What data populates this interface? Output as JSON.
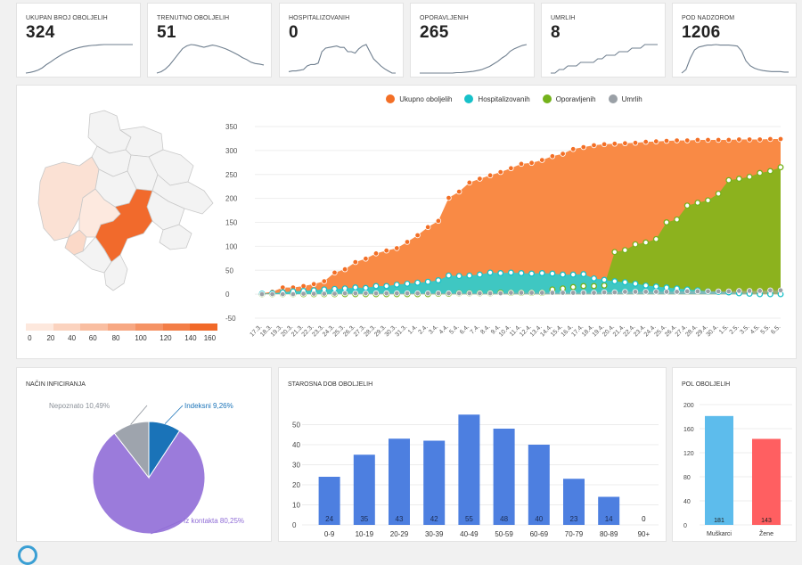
{
  "kpis": [
    {
      "key": "total",
      "title": "UKUPAN BROJ OBOLJELIH",
      "value": "324",
      "series": [
        4,
        8,
        15,
        25,
        40,
        62,
        80,
        100,
        118,
        135,
        150,
        162,
        172,
        180,
        186,
        190,
        194,
        196,
        198,
        200,
        200,
        200,
        200,
        200,
        200,
        200,
        200
      ]
    },
    {
      "key": "current",
      "title": "TRENUTNO OBOLJELIH",
      "value": "51",
      "series": [
        5,
        10,
        20,
        35,
        55,
        75,
        95,
        105,
        110,
        108,
        104,
        100,
        104,
        108,
        105,
        100,
        95,
        88,
        80,
        72,
        62,
        55,
        45,
        40,
        38,
        35
      ]
    },
    {
      "key": "hosp",
      "title": "HOSPITALIZOVANIH",
      "value": "0",
      "series": [
        2,
        3,
        3,
        4,
        5,
        10,
        12,
        12,
        14,
        30,
        35,
        36,
        37,
        38,
        36,
        36,
        30,
        30,
        28,
        34,
        38,
        40,
        30,
        20,
        15,
        10,
        6,
        3,
        0,
        0
      ]
    },
    {
      "key": "recovered",
      "title": "OPORAVLJENIH",
      "value": "265",
      "series": [
        0,
        0,
        0,
        0,
        0,
        0,
        0,
        0,
        0,
        1,
        1,
        2,
        3,
        4,
        6,
        8,
        12,
        16,
        22,
        28,
        36,
        42,
        52,
        58,
        62,
        66,
        68
      ]
    },
    {
      "key": "deaths",
      "title": "UMRLIH",
      "value": "8",
      "series": [
        0,
        0,
        1,
        1,
        2,
        2,
        2,
        3,
        3,
        3,
        3,
        4,
        4,
        5,
        5,
        5,
        6,
        6,
        6,
        7,
        7,
        7,
        8,
        8,
        8,
        8
      ]
    },
    {
      "key": "surveillance",
      "title": "POD NADZOROM",
      "value": "1206",
      "series": [
        5,
        12,
        35,
        52,
        58,
        60,
        62,
        62,
        63,
        62,
        62,
        62,
        61,
        60,
        50,
        30,
        20,
        15,
        12,
        10,
        9,
        8,
        8,
        8,
        7,
        7
      ]
    }
  ],
  "map": {
    "scale_ticks": [
      "0",
      "20",
      "40",
      "60",
      "80",
      "100",
      "120",
      "140",
      "160"
    ],
    "scale_colors": [
      "#fde8dd",
      "#fbd3bf",
      "#f9bea1",
      "#f7a883",
      "#f59365",
      "#f37e47",
      "#f16929"
    ]
  },
  "timeline": {
    "legend": [
      {
        "label": "Ukupno oboljelih",
        "color": "#f36f26"
      },
      {
        "label": "Hospitalizovanih",
        "color": "#17c1c9"
      },
      {
        "label": "Oporavljenih",
        "color": "#74b21b"
      },
      {
        "label": "Umrlih",
        "color": "#9aa0a6"
      }
    ],
    "yticks": [
      "350",
      "300",
      "250",
      "200",
      "150",
      "100",
      "50",
      "0",
      "-50"
    ],
    "dates": [
      "17.3.",
      "18.3.",
      "19.3.",
      "20.3.",
      "21.3.",
      "22.3.",
      "23.3.",
      "24.3.",
      "25.3.",
      "26.3.",
      "27.3.",
      "28.3.",
      "29.3.",
      "30.3.",
      "31.3.",
      "1.4.",
      "2.4.",
      "3.4.",
      "4.4.",
      "5.4.",
      "6.4.",
      "7.4.",
      "8.4.",
      "9.4.",
      "10.4.",
      "11.4.",
      "12.4.",
      "13.4.",
      "14.4.",
      "15.4.",
      "16.4.",
      "17.4.",
      "18.4.",
      "19.4.",
      "20.4.",
      "21.4.",
      "22.4.",
      "23.4.",
      "24.4.",
      "25.4.",
      "26.4.",
      "27.4.",
      "28.4.",
      "29.4.",
      "30.4.",
      "1.5.",
      "2.5.",
      "3.5.",
      "4.5.",
      "5.5.",
      "6.5."
    ]
  },
  "chart_data": [
    {
      "type": "area",
      "ylim": [
        -50,
        350
      ],
      "x": [
        "17.3.",
        "18.3.",
        "19.3.",
        "20.3.",
        "21.3.",
        "22.3.",
        "23.3.",
        "24.3.",
        "25.3.",
        "26.3.",
        "27.3.",
        "28.3.",
        "29.3.",
        "30.3.",
        "31.3.",
        "1.4.",
        "2.4.",
        "3.4.",
        "4.4.",
        "5.4.",
        "6.4.",
        "7.4.",
        "8.4.",
        "9.4.",
        "10.4.",
        "11.4.",
        "12.4.",
        "13.4.",
        "14.4.",
        "15.4.",
        "16.4.",
        "17.4.",
        "18.4.",
        "19.4.",
        "20.4.",
        "21.4.",
        "22.4.",
        "23.4.",
        "24.4.",
        "25.4.",
        "26.4.",
        "27.4.",
        "28.4.",
        "29.4.",
        "30.4.",
        "1.5.",
        "2.5.",
        "3.5.",
        "4.5.",
        "5.5.",
        "6.5."
      ],
      "series": [
        {
          "name": "Ukupno oboljelih",
          "values": [
            2,
            5,
            14,
            14,
            17,
            21,
            27,
            45,
            52,
            67,
            74,
            85,
            91,
            96,
            109,
            123,
            140,
            153,
            201,
            214,
            233,
            241,
            248,
            255,
            263,
            272,
            274,
            280,
            288,
            293,
            303,
            307,
            311,
            313,
            314,
            315,
            316,
            318,
            319,
            320,
            321,
            321,
            322,
            322,
            322,
            322,
            323,
            323,
            323,
            324,
            324
          ]
        },
        {
          "name": "Hospitalizovanih",
          "values": [
            1,
            2,
            4,
            6,
            7,
            8,
            10,
            11,
            12,
            14,
            13,
            17,
            17,
            20,
            22,
            24,
            26,
            29,
            39,
            38,
            39,
            41,
            45,
            44,
            45,
            44,
            43,
            44,
            43,
            41,
            41,
            42,
            33,
            30,
            27,
            25,
            22,
            18,
            16,
            14,
            12,
            10,
            8,
            6,
            5,
            4,
            2,
            1,
            0,
            0,
            0
          ]
        },
        {
          "name": "Oporavljenih",
          "values": [
            0,
            0,
            0,
            0,
            0,
            0,
            0,
            0,
            0,
            0,
            0,
            0,
            0,
            0,
            0,
            0,
            0,
            1,
            1,
            2,
            2,
            2,
            2,
            3,
            3,
            3,
            3,
            3,
            10,
            12,
            15,
            17,
            17,
            18,
            88,
            92,
            104,
            108,
            115,
            150,
            156,
            185,
            191,
            196,
            210,
            238,
            241,
            245,
            253,
            257,
            265
          ]
        },
        {
          "name": "Umrlih",
          "values": [
            0,
            0,
            0,
            0,
            1,
            1,
            1,
            1,
            2,
            2,
            2,
            2,
            2,
            2,
            2,
            2,
            2,
            2,
            2,
            2,
            2,
            2,
            2,
            2,
            3,
            3,
            3,
            3,
            3,
            3,
            3,
            3,
            3,
            4,
            4,
            5,
            5,
            5,
            5,
            5,
            5,
            6,
            6,
            6,
            6,
            6,
            7,
            7,
            7,
            8,
            8
          ]
        }
      ]
    },
    {
      "type": "pie",
      "title": "NAČIN INFICIRANJA",
      "slices": [
        {
          "name": "Indeksni",
          "value": 9.26,
          "label": "Indeksni 9,26%",
          "color": "#1a73b8"
        },
        {
          "name": "Iz kontakta",
          "value": 80.25,
          "label": "Iz kontakta 80,25%",
          "color": "#9b7bdb"
        },
        {
          "name": "Nepoznato",
          "value": 10.49,
          "label": "Nepoznato 10,49%",
          "color": "#9ea4ad"
        }
      ]
    },
    {
      "type": "bar",
      "title": "STAROSNA DOB OBOLJELIH",
      "categories": [
        "0-9",
        "10-19",
        "20-29",
        "30-39",
        "40-49",
        "50-59",
        "60-69",
        "70-79",
        "80-89",
        "90+"
      ],
      "values": [
        24,
        35,
        43,
        42,
        55,
        48,
        40,
        23,
        14,
        0
      ],
      "ylim": [
        0,
        60
      ],
      "yticks": [
        "0",
        "10",
        "20",
        "30",
        "40",
        "50"
      ],
      "color": "#4d7fe0"
    },
    {
      "type": "bar",
      "title": "POL OBOLJELIH",
      "categories": [
        "Muškarci",
        "Žene"
      ],
      "values": [
        181,
        143
      ],
      "colors": [
        "#5dbcec",
        "#ff5f61"
      ],
      "ylim": [
        0,
        200
      ],
      "yticks": [
        "0",
        "40",
        "80",
        "120",
        "160",
        "200"
      ]
    }
  ]
}
